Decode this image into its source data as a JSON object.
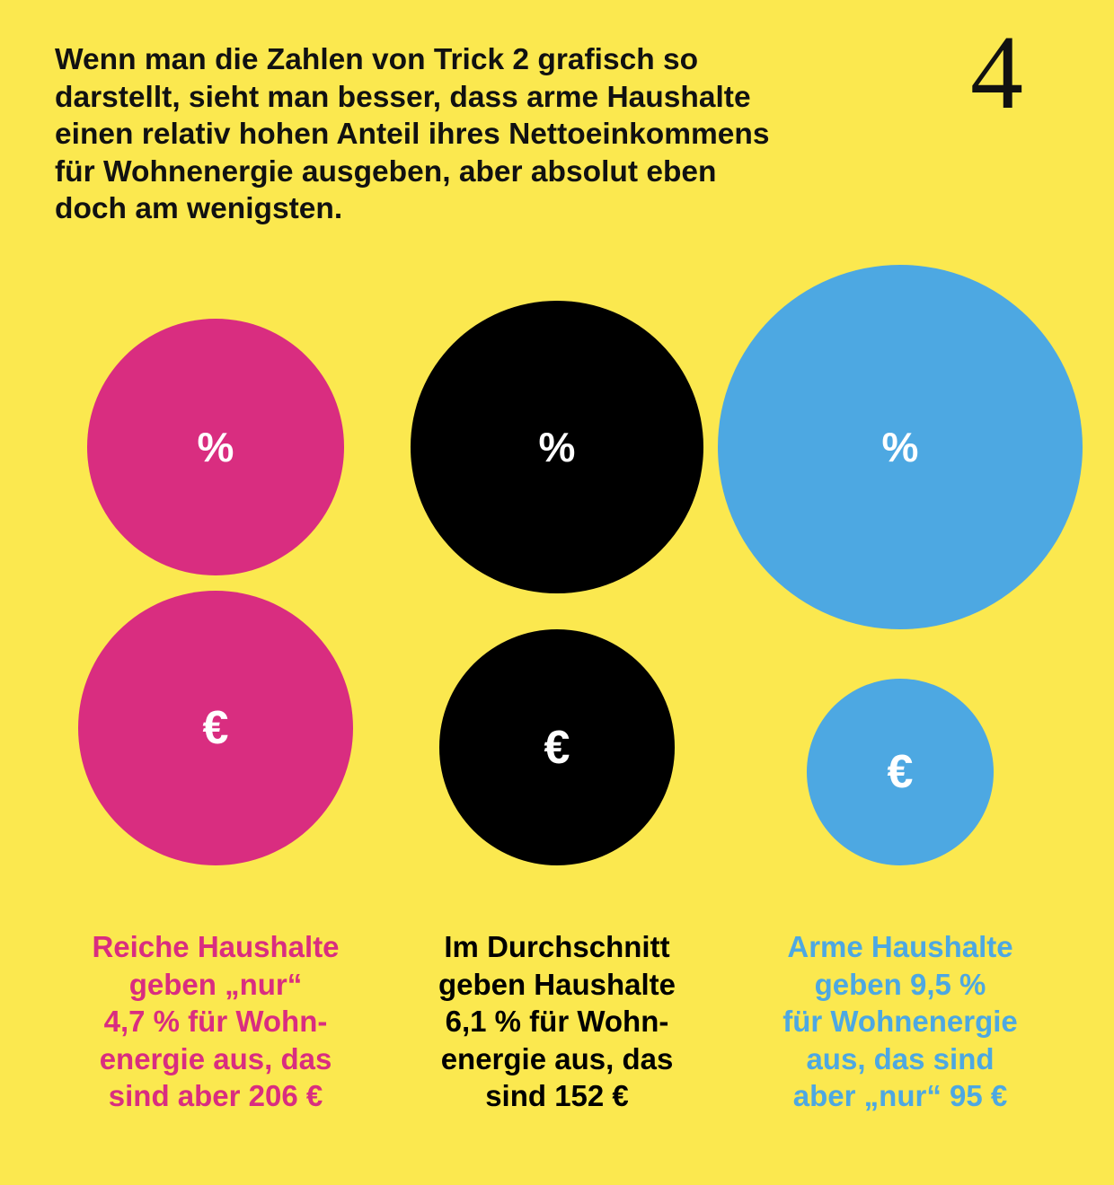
{
  "page_number": "4",
  "intro": "Wenn man die Zahlen von Trick 2 grafisch so\ndarstellt, sieht man besser, dass arme Haushalte\neinen relativ hohen Anteil ihres Nettoeinkommens\nfür Wohnenergie ausgeben, aber absolut eben\ndoch am wenigsten.",
  "symbols": {
    "percent": "%",
    "euro": "€"
  },
  "colors": {
    "background": "#FBE84F",
    "reich": "#D92D80",
    "durchschnitt": "#000000",
    "arm": "#4DA8E2"
  },
  "groups": [
    {
      "key": "reich",
      "color": "#D92D80",
      "caption": "Reiche Haushalte\ngeben „nur“\n4,7 % für Wohn-\nenergie aus, das\nsind aber 206 €",
      "percent": 4.7,
      "euro": 206
    },
    {
      "key": "durchschnitt",
      "color": "#000000",
      "caption": "Im Durchschnitt\ngeben Haushalte\n6,1 % für Wohn-\nenergie aus, das\nsind 152 €",
      "percent": 6.1,
      "euro": 152
    },
    {
      "key": "arm",
      "color": "#4DA8E2",
      "caption": "Arme Haushalte\ngeben 9,5 %\nfür Wohnenergie\naus, das sind\naber „nur“ 95 €",
      "percent": 9.5,
      "euro": 95
    }
  ]
}
